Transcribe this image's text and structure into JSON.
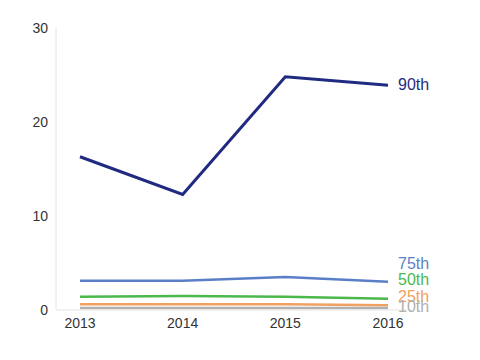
{
  "chart_data": {
    "type": "line",
    "categories": [
      "2013",
      "2014",
      "2015",
      "2016"
    ],
    "ylim": [
      0,
      30
    ],
    "yticks": [
      0,
      10,
      20,
      30
    ],
    "grid": false,
    "series": [
      {
        "name": "90th",
        "color": "#1f2a80",
        "values": [
          16.3,
          12.3,
          24.8,
          23.9
        ]
      },
      {
        "name": "75th",
        "color": "#5b7fc7",
        "values": [
          3.1,
          3.1,
          3.5,
          3.0
        ]
      },
      {
        "name": "50th",
        "color": "#4cb84c",
        "values": [
          1.4,
          1.5,
          1.4,
          1.2
        ]
      },
      {
        "name": "25th",
        "color": "#f0a060",
        "values": [
          0.6,
          0.6,
          0.6,
          0.5
        ]
      },
      {
        "name": "10th",
        "color": "#b0b0b0",
        "values": [
          0.2,
          0.2,
          0.2,
          0.2
        ]
      }
    ]
  }
}
